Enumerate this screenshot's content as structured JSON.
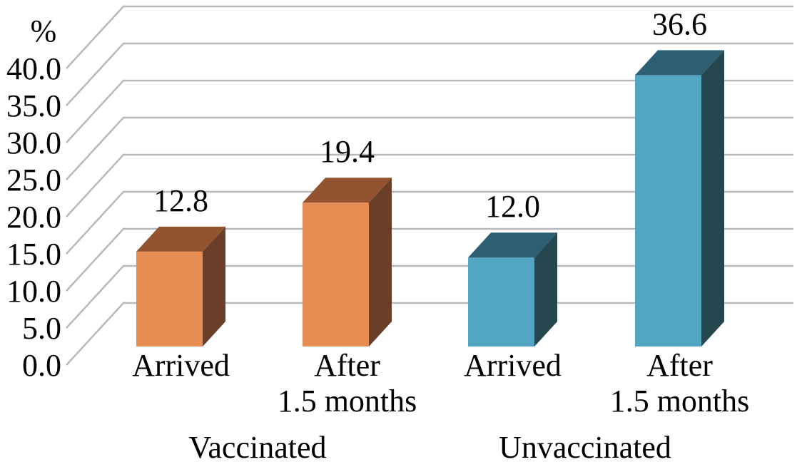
{
  "chart_data": {
    "type": "bar",
    "style": "3d-cuboid",
    "title": "",
    "axis": {
      "unit_label": "%",
      "ymin": 0,
      "ymax": 40,
      "step": 5,
      "ytick_values": [
        0,
        5,
        10,
        15,
        20,
        25,
        30,
        35,
        40
      ],
      "ytick_labels": [
        "0.0",
        "5.0",
        "10.0",
        "15.0",
        "20.0",
        "25.0",
        "30.0",
        "35.0",
        "40.0"
      ]
    },
    "grid": {
      "shown": true,
      "color": "#b6b9bd"
    },
    "legend": {
      "shown": false
    },
    "groups": [
      {
        "label": "Vaccinated",
        "bar_color": {
          "front": "#E88D54",
          "top": "#94532F",
          "side": "#6A3F29"
        },
        "bars": [
          {
            "category": "Arrived",
            "category_lines": [
              "Arrived"
            ],
            "value": 12.8,
            "value_label": "12.8"
          },
          {
            "category": "After 1.5 months",
            "category_lines": [
              "After",
              "1.5 months"
            ],
            "value": 19.4,
            "value_label": "19.4"
          }
        ]
      },
      {
        "label": "Unvaccinated",
        "bar_color": {
          "front": "#52A6C3",
          "top": "#2D5F73",
          "side": "#264750"
        },
        "bars": [
          {
            "category": "Arrived",
            "category_lines": [
              "Arrived"
            ],
            "value": 12.0,
            "value_label": "12.0"
          },
          {
            "category": "After 1.5 months",
            "category_lines": [
              "After",
              "1.5 months"
            ],
            "value": 36.6,
            "value_label": "36.6"
          }
        ]
      }
    ],
    "text_color": "#000000",
    "background_color": "#ffffff"
  }
}
